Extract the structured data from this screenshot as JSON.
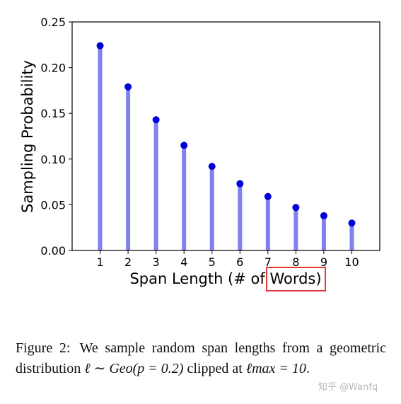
{
  "chart_data": {
    "type": "stem",
    "x": [
      1,
      2,
      3,
      4,
      5,
      6,
      7,
      8,
      9,
      10
    ],
    "values": [
      0.224,
      0.179,
      0.143,
      0.115,
      0.092,
      0.073,
      0.059,
      0.047,
      0.038,
      0.03
    ],
    "xlabel": "Span Length (# of Words)",
    "ylabel": "Sampling Probability",
    "ylim": [
      0,
      0.25
    ],
    "xlim": [
      0,
      11
    ],
    "yticks": [
      "0.00",
      "0.05",
      "0.10",
      "0.15",
      "0.20",
      "0.25"
    ],
    "xticks": [
      "1",
      "2",
      "3",
      "4",
      "5",
      "6",
      "7",
      "8",
      "9",
      "10"
    ],
    "grid": false,
    "colors": {
      "stem": "#8080f0",
      "marker": "#0000d8",
      "highlight_box": "#e03a3a"
    }
  },
  "caption": {
    "label": "Figure 2:",
    "text_before_math": "We sample random span lengths from a geometric distribution ",
    "math_dist": "ℓ ∼ Geo(p = 0.2)",
    "text_middle": " clipped at ",
    "math_max": "ℓmax = 10",
    "text_end": "."
  },
  "watermark": "知乎 @Wanfq"
}
